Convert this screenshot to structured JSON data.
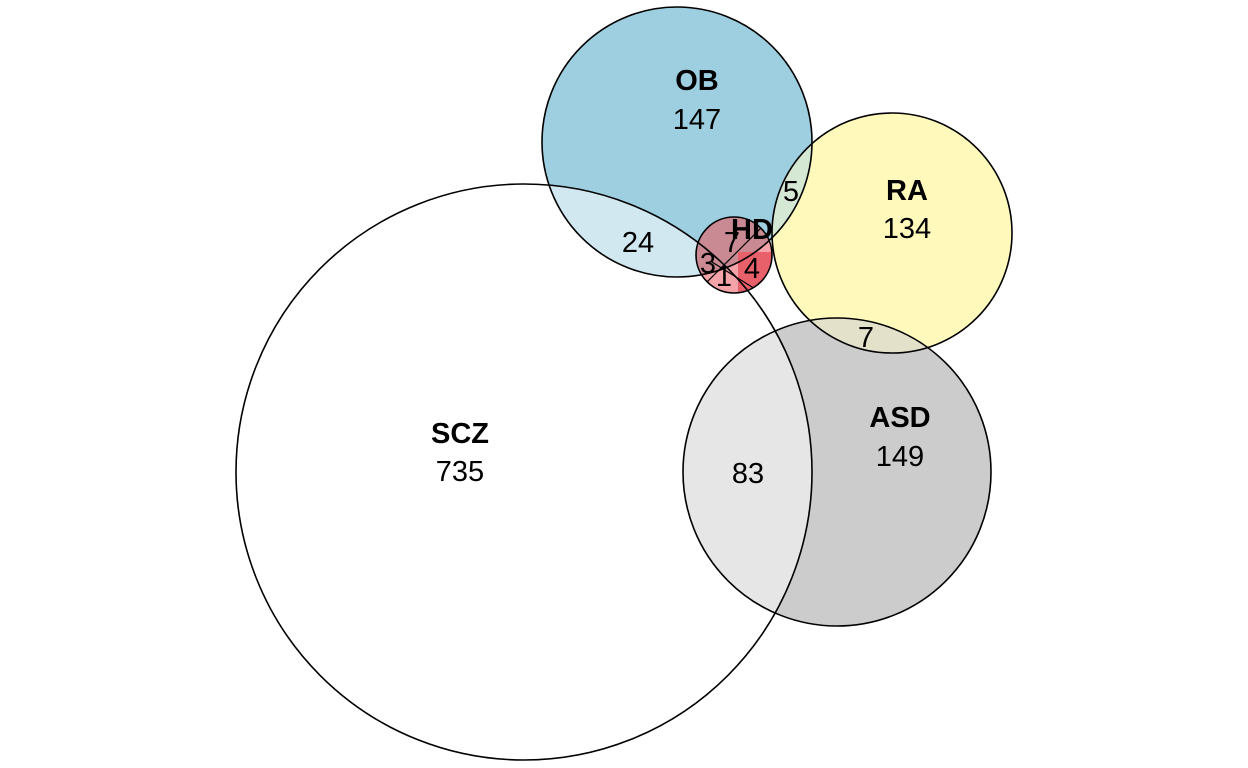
{
  "sets": [
    {
      "id": "SCZ",
      "name": "SCZ",
      "count": "735",
      "color": "#ffffff"
    },
    {
      "id": "OB",
      "name": "OB",
      "count": "147",
      "color": "#9ecfe0"
    },
    {
      "id": "RA",
      "name": "RA",
      "count": "134",
      "color": "#fffabc"
    },
    {
      "id": "ASD",
      "name": "ASD",
      "count": "149",
      "color": "#cccccc"
    },
    {
      "id": "HD",
      "name": "HD",
      "count": "",
      "color": "#e8606a"
    }
  ],
  "overlaps": [
    {
      "id": "SCZ-OB",
      "sets": [
        "SCZ",
        "OB"
      ],
      "value": "24"
    },
    {
      "id": "OB-RA",
      "sets": [
        "OB",
        "RA"
      ],
      "value": "5"
    },
    {
      "id": "RA-ASD",
      "sets": [
        "RA",
        "ASD"
      ],
      "value": "7"
    },
    {
      "id": "SCZ-ASD",
      "sets": [
        "SCZ",
        "ASD"
      ],
      "value": "83"
    },
    {
      "id": "OB-HD",
      "sets": [
        "OB",
        "HD"
      ],
      "value": "7"
    },
    {
      "id": "SCZ-OB-HD",
      "sets": [
        "SCZ",
        "OB",
        "HD"
      ],
      "value": "3"
    },
    {
      "id": "SCZ-HD",
      "sets": [
        "SCZ",
        "HD"
      ],
      "value": "1"
    },
    {
      "id": "HD-only",
      "sets": [
        "HD"
      ],
      "value": "4"
    }
  ]
}
